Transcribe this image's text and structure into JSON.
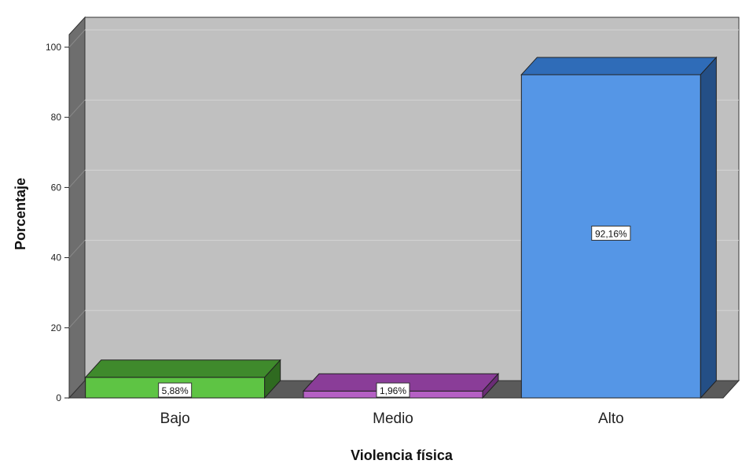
{
  "chart_data": {
    "type": "bar",
    "title": "",
    "xlabel": "Violencia física",
    "ylabel": "Porcentaje",
    "categories": [
      "Bajo",
      "Medio",
      "Alto"
    ],
    "values": [
      5.88,
      1.96,
      92.16
    ],
    "data_labels": [
      "5,88%",
      "1,96%",
      "92,16%"
    ],
    "ylim": [
      0,
      100
    ],
    "yticks": [
      0,
      20,
      40,
      60,
      80,
      100
    ],
    "grid": true,
    "legend": "none",
    "colors": {
      "bars": [
        "#5ec444",
        "#b560c4",
        "#5596e6"
      ],
      "bar_tops": [
        "#3f8a2c",
        "#8a3d98",
        "#2f6cb8"
      ],
      "bar_sides": [
        "#2f6a20",
        "#6a2c76",
        "#244f86"
      ],
      "wall": "#c0c0c0",
      "floor": "#5a5a5a",
      "grid": "#d4d4d4"
    }
  }
}
